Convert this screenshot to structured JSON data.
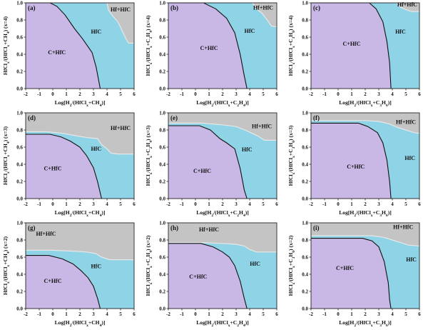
{
  "colors": {
    "c_hfc": "#c9b8e6",
    "hfc": "#8ed3e6",
    "hf_hfc": "#c4c4c4",
    "boundary": "#111111",
    "axis": "#222222"
  },
  "chart_data": [
    {
      "type": "area",
      "panel": "a",
      "label": "(a)",
      "xlabel": "Log[H2/(HfClx+CH4)]",
      "ylabel": "HfClx/(HfClx+CH4) (x=4)",
      "xlim": [
        -2,
        6
      ],
      "ylim": [
        0,
        1
      ],
      "xticks": [
        "-2",
        "-1",
        "0",
        "1",
        "2",
        "3",
        "4",
        "5",
        "6"
      ],
      "yticks": [
        "0.0",
        "0.2",
        "0.4",
        "0.6",
        "0.8",
        "1.0"
      ],
      "regions": [
        {
          "name": "C+HfC",
          "label_pos": [
            0.3,
            0.4
          ],
          "boundary": [
            [
              -2,
              1.0
            ],
            [
              -0.2,
              1.0
            ],
            [
              0.3,
              0.96
            ],
            [
              0.9,
              0.86
            ],
            [
              1.6,
              0.7
            ],
            [
              2.2,
              0.58
            ],
            [
              2.9,
              0.42
            ],
            [
              3.2,
              0.25
            ],
            [
              3.5,
              0.0
            ]
          ]
        },
        {
          "name": "HfC",
          "label_pos": [
            3.2,
            0.64
          ]
        },
        {
          "name": "Hf+HfC",
          "label_pos": [
            5.0,
            0.9
          ],
          "boundary": [
            [
              4.0,
              1.0
            ],
            [
              4.1,
              0.92
            ],
            [
              4.4,
              0.85
            ],
            [
              4.8,
              0.78
            ],
            [
              5.1,
              0.68
            ],
            [
              5.4,
              0.58
            ],
            [
              5.6,
              0.53
            ],
            [
              6,
              0.53
            ]
          ]
        }
      ]
    },
    {
      "type": "area",
      "panel": "b",
      "label": "(b)",
      "xlabel": "Log[H2/(HfClx+C2H4)]",
      "ylabel": "HfClx/(HfClx+C2H4) (x=4)",
      "xlim": [
        -2,
        6
      ],
      "ylim": [
        0,
        1
      ],
      "xticks": [
        "-2",
        "-1",
        "0",
        "1",
        "2",
        "3",
        "4",
        "5",
        "6"
      ],
      "yticks": [
        "0.0",
        "0.2",
        "0.4",
        "0.6",
        "0.8",
        "1.0"
      ],
      "regions": [
        {
          "name": "C+HfC",
          "label_pos": [
            1.0,
            0.45
          ],
          "boundary": [
            [
              -2,
              1.0
            ],
            [
              0.6,
              1.0
            ],
            [
              1.5,
              0.93
            ],
            [
              2.3,
              0.82
            ],
            [
              2.9,
              0.65
            ],
            [
              3.3,
              0.4
            ],
            [
              3.6,
              0.15
            ],
            [
              3.8,
              0.0
            ]
          ]
        },
        {
          "name": "HfC",
          "label_pos": [
            4.0,
            0.65
          ]
        },
        {
          "name": "Hf+HfC",
          "label_pos": [
            5.0,
            0.92
          ],
          "boundary": [
            [
              4.2,
              1.0
            ],
            [
              4.5,
              0.93
            ],
            [
              4.9,
              0.88
            ],
            [
              5.3,
              0.8
            ],
            [
              5.6,
              0.73
            ],
            [
              6,
              0.72
            ]
          ]
        }
      ]
    },
    {
      "type": "area",
      "panel": "c",
      "label": "(c)",
      "xlabel": "Log[H2/(HfClx+C3H6)]",
      "ylabel": "HfClx/(HfClx+C3H6) (x=4)",
      "xlim": [
        -2,
        6
      ],
      "ylim": [
        0,
        1
      ],
      "xticks": [
        "-2",
        "-1",
        "0",
        "1",
        "2",
        "3",
        "4",
        "5",
        "6"
      ],
      "yticks": [
        "0.0",
        "0.2",
        "0.4",
        "0.6",
        "0.8",
        "1.0"
      ],
      "regions": [
        {
          "name": "C+HfC",
          "label_pos": [
            1.0,
            0.5
          ],
          "boundary": [
            [
              -2,
              1.0
            ],
            [
              2.3,
              1.0
            ],
            [
              2.8,
              0.93
            ],
            [
              3.3,
              0.78
            ],
            [
              3.6,
              0.55
            ],
            [
              3.8,
              0.3
            ],
            [
              3.9,
              0.0
            ]
          ]
        },
        {
          "name": "HfC",
          "label_pos": [
            4.6,
            0.64
          ]
        },
        {
          "name": "Hf+HfC",
          "label_pos": [
            5.1,
            0.96
          ],
          "boundary": [
            [
              4.3,
              1.0
            ],
            [
              4.6,
              0.95
            ],
            [
              5.0,
              0.92
            ],
            [
              5.4,
              0.9
            ],
            [
              6,
              0.9
            ]
          ]
        }
      ]
    },
    {
      "type": "area",
      "panel": "d",
      "label": "(d)",
      "xlabel": "Log[H2/(HfClx+CH4)]",
      "ylabel": "HfClx/(HfClx+CH4) (x=3)",
      "xlim": [
        -2,
        6
      ],
      "ylim": [
        0,
        1
      ],
      "xticks": [
        "-2",
        "-1",
        "0",
        "1",
        "2",
        "3",
        "4",
        "5",
        "6"
      ],
      "yticks": [
        "0.0",
        "0.2",
        "0.4",
        "0.6",
        "0.8",
        "1.0"
      ],
      "regions": [
        {
          "name": "C+HfC",
          "label_pos": [
            0.0,
            0.33
          ],
          "boundary": [
            [
              -2,
              0.75
            ],
            [
              -0.2,
              0.75
            ],
            [
              0.6,
              0.72
            ],
            [
              1.3,
              0.67
            ],
            [
              2.0,
              0.6
            ],
            [
              2.5,
              0.5
            ],
            [
              3.0,
              0.36
            ],
            [
              3.3,
              0.2
            ],
            [
              3.6,
              0.0
            ]
          ]
        },
        {
          "name": "HfC",
          "label_pos": [
            3.2,
            0.56
          ]
        },
        {
          "name": "Hf+HfC",
          "label_pos": [
            5.0,
            0.8
          ],
          "boundary": [
            [
              -2,
              0.78
            ],
            [
              -0.5,
              0.78
            ],
            [
              0.8,
              0.76
            ],
            [
              1.8,
              0.73
            ],
            [
              2.6,
              0.71
            ],
            [
              3.3,
              0.7
            ],
            [
              3.6,
              0.63
            ],
            [
              4.0,
              0.58
            ],
            [
              4.3,
              0.53
            ],
            [
              4.8,
              0.52
            ],
            [
              6,
              0.52
            ]
          ]
        }
      ]
    },
    {
      "type": "area",
      "panel": "e",
      "label": "(e)",
      "xlabel": "Log[H2/(HfClx+C2H4)]",
      "ylabel": "HfClx/(HfClx+C2H4) (x=3)",
      "xlim": [
        -2,
        6
      ],
      "ylim": [
        0,
        1
      ],
      "xticks": [
        "-2",
        "-1",
        "0",
        "1",
        "2",
        "3",
        "4",
        "5",
        "6"
      ],
      "yticks": [
        "0.0",
        "0.2",
        "0.4",
        "0.6",
        "0.8",
        "1.0"
      ],
      "regions": [
        {
          "name": "C+HfC",
          "label_pos": [
            0.5,
            0.3
          ],
          "boundary": [
            [
              -2,
              0.85
            ],
            [
              0.3,
              0.85
            ],
            [
              1.1,
              0.8
            ],
            [
              1.8,
              0.7
            ],
            [
              2.3,
              0.65
            ],
            [
              2.9,
              0.58
            ],
            [
              3.3,
              0.35
            ],
            [
              3.6,
              0.1
            ],
            [
              3.8,
              0.0
            ]
          ]
        },
        {
          "name": "HfC",
          "label_pos": [
            3.8,
            0.55
          ]
        },
        {
          "name": "Hf+HfC",
          "label_pos": [
            4.9,
            0.82
          ],
          "boundary": [
            [
              -2,
              0.88
            ],
            [
              0.5,
              0.88
            ],
            [
              2.0,
              0.86
            ],
            [
              3.0,
              0.84
            ],
            [
              3.8,
              0.79
            ],
            [
              4.6,
              0.73
            ],
            [
              5.1,
              0.68
            ],
            [
              6,
              0.68
            ]
          ]
        }
      ]
    },
    {
      "type": "area",
      "panel": "f",
      "label": "(f)",
      "xlabel": "Log[H2/(HfClx+C3H6)]",
      "ylabel": "HfClx/(HfClx+C3H6) (x=3)",
      "xlim": [
        -2,
        6
      ],
      "ylim": [
        0,
        1
      ],
      "xticks": [
        "-2",
        "-1",
        "0",
        "1",
        "2",
        "3",
        "4",
        "5",
        "6"
      ],
      "yticks": [
        "0.0",
        "0.2",
        "0.4",
        "0.6",
        "0.8",
        "1.0"
      ],
      "regions": [
        {
          "name": "C+HfC",
          "label_pos": [
            1.3,
            0.35
          ],
          "boundary": [
            [
              -2,
              0.88
            ],
            [
              1.5,
              0.88
            ],
            [
              2.2,
              0.84
            ],
            [
              2.9,
              0.77
            ],
            [
              3.3,
              0.65
            ],
            [
              3.6,
              0.45
            ],
            [
              3.8,
              0.2
            ],
            [
              3.9,
              0.0
            ]
          ]
        },
        {
          "name": "HfC",
          "label_pos": [
            5.3,
            0.45
          ]
        },
        {
          "name": "Hf+HfC",
          "label_pos": [
            5.0,
            0.87
          ],
          "boundary": [
            [
              -2,
              0.91
            ],
            [
              2.0,
              0.91
            ],
            [
              3.0,
              0.9
            ],
            [
              3.8,
              0.87
            ],
            [
              4.4,
              0.83
            ],
            [
              5.0,
              0.8
            ],
            [
              5.6,
              0.77
            ],
            [
              6,
              0.76
            ]
          ]
        }
      ]
    },
    {
      "type": "area",
      "panel": "g",
      "label": "(g)",
      "xlabel": "Log[H2/(HfClx+CH4)]",
      "ylabel": "HfClx/(HfClx+CH4) (x=2)",
      "xlim": [
        -2,
        6
      ],
      "ylim": [
        0,
        1
      ],
      "xticks": [
        "-2",
        "-1",
        "0",
        "1",
        "2",
        "3",
        "4",
        "5",
        "6"
      ],
      "yticks": [
        "0.0",
        "0.2",
        "0.4",
        "0.6",
        "0.8",
        "1.0"
      ],
      "regions": [
        {
          "name": "C+HfC",
          "label_pos": [
            0.0,
            0.3
          ],
          "boundary": [
            [
              -2,
              0.62
            ],
            [
              -0.3,
              0.62
            ],
            [
              0.7,
              0.58
            ],
            [
              1.5,
              0.52
            ],
            [
              2.1,
              0.44
            ],
            [
              2.6,
              0.36
            ],
            [
              3.0,
              0.26
            ],
            [
              3.3,
              0.12
            ],
            [
              3.5,
              0.0
            ]
          ]
        },
        {
          "name": "HfC",
          "label_pos": [
            3.2,
            0.47
          ]
        },
        {
          "name": "Hf+HfC",
          "label_pos": [
            -0.5,
            0.85
          ],
          "boundary": [
            [
              -2,
              0.68
            ],
            [
              0.0,
              0.68
            ],
            [
              1.5,
              0.67
            ],
            [
              2.5,
              0.66
            ],
            [
              3.2,
              0.64
            ],
            [
              3.6,
              0.6
            ],
            [
              4.2,
              0.57
            ],
            [
              6,
              0.57
            ]
          ]
        }
      ]
    },
    {
      "type": "area",
      "panel": "h",
      "label": "(h)",
      "xlabel": "Log[H2/(HfClx+C2H4)]",
      "ylabel": "HfClx/(HfClx+C2H4) (x=2)",
      "xlim": [
        -2,
        6
      ],
      "ylim": [
        0,
        1
      ],
      "xticks": [
        "-2",
        "-1",
        "0",
        "1",
        "2",
        "3",
        "4",
        "5",
        "6"
      ],
      "yticks": [
        "0.0",
        "0.2",
        "0.4",
        "0.6",
        "0.8",
        "1.0"
      ],
      "regions": [
        {
          "name": "C+HfC",
          "label_pos": [
            0.2,
            0.35
          ],
          "boundary": [
            [
              -2,
              0.76
            ],
            [
              0.4,
              0.76
            ],
            [
              1.3,
              0.72
            ],
            [
              2.0,
              0.66
            ],
            [
              2.5,
              0.6
            ],
            [
              2.9,
              0.5
            ],
            [
              3.3,
              0.32
            ],
            [
              3.6,
              0.12
            ],
            [
              3.8,
              0.0
            ]
          ]
        },
        {
          "name": "HfC",
          "label_pos": [
            4.4,
            0.5
          ]
        },
        {
          "name": "Hf+HfC",
          "label_pos": [
            1.0,
            0.9
          ],
          "boundary": [
            [
              -2,
              0.77
            ],
            [
              0.5,
              0.77
            ],
            [
              2.0,
              0.76
            ],
            [
              3.0,
              0.75
            ],
            [
              3.6,
              0.73
            ],
            [
              4.0,
              0.69
            ],
            [
              4.5,
              0.66
            ],
            [
              6,
              0.66
            ]
          ]
        }
      ]
    },
    {
      "type": "area",
      "panel": "i",
      "label": "(i)",
      "xlabel": "Log[H2/(HfClx+C3H6)]",
      "ylabel": "HfClx/(HfClx+C3H6) (x=2)",
      "xlim": [
        -2,
        6
      ],
      "ylim": [
        0,
        1
      ],
      "xticks": [
        "-2",
        "-1",
        "0",
        "1",
        "2",
        "3",
        "4",
        "5",
        "6"
      ],
      "yticks": [
        "0.0",
        "0.2",
        "0.4",
        "0.6",
        "0.8",
        "1.0"
      ],
      "regions": [
        {
          "name": "C+HfC",
          "label_pos": [
            0.5,
            0.45
          ],
          "boundary": [
            [
              -2,
              0.82
            ],
            [
              1.8,
              0.82
            ],
            [
              2.5,
              0.79
            ],
            [
              3.0,
              0.72
            ],
            [
              3.4,
              0.55
            ],
            [
              3.7,
              0.3
            ],
            [
              3.8,
              0.1
            ],
            [
              3.9,
              0.0
            ]
          ]
        },
        {
          "name": "HfC",
          "label_pos": [
            5.4,
            0.55
          ]
        },
        {
          "name": "Hf+HfC",
          "label_pos": [
            4.8,
            0.93
          ],
          "boundary": [
            [
              -2,
              0.85
            ],
            [
              2.5,
              0.85
            ],
            [
              3.4,
              0.83
            ],
            [
              4.0,
              0.8
            ],
            [
              4.6,
              0.77
            ],
            [
              5.2,
              0.74
            ],
            [
              6,
              0.73
            ]
          ]
        }
      ]
    }
  ]
}
